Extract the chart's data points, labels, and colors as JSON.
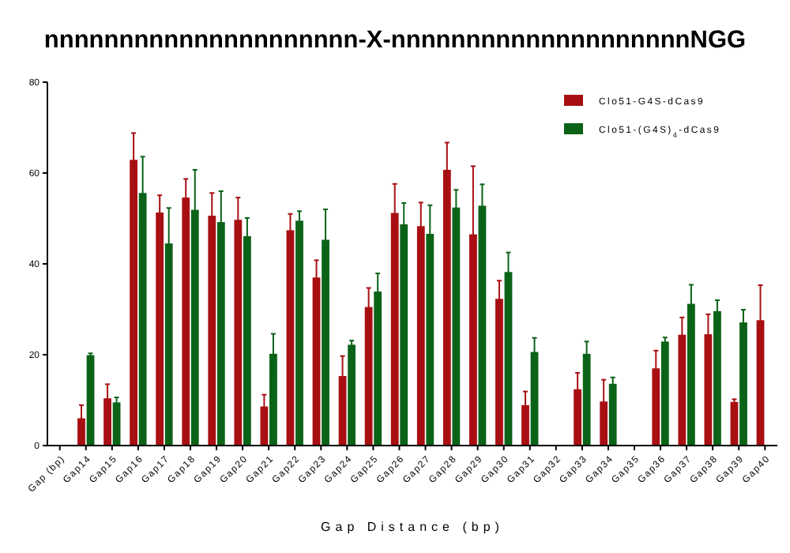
{
  "chart_data": {
    "type": "bar",
    "title": "nnnnnnnnnnnnnnnnnnnnn-X-nnnnnnnnnnnnnnnnnnnnNGG",
    "xlabel": "Gap Distance (bp)",
    "categories": [
      "Gap (bp)",
      "Gap14",
      "Gap15",
      "Gap16",
      "Gap17",
      "Gap18",
      "Gap19",
      "Gap20",
      "Gap21",
      "Gap22",
      "Gap23",
      "Gap24",
      "Gap25",
      "Gap26",
      "Gap27",
      "Gap28",
      "Gap29",
      "Gap30",
      "Gap31",
      "Gap32",
      "Gap33",
      "Gap34",
      "Gap35",
      "Gap36",
      "Gap37",
      "Gap38",
      "Gap39",
      "Gap40"
    ],
    "series": [
      {
        "name": "Clo51-G4S-dCas9",
        "color": "#a80f12",
        "values": [
          null,
          6.0,
          10.4,
          62.9,
          51.3,
          54.6,
          50.6,
          49.7,
          8.6,
          47.4,
          37.0,
          15.3,
          30.5,
          51.2,
          48.3,
          60.7,
          46.5,
          32.3,
          8.9,
          null,
          12.4,
          9.7,
          null,
          17.0,
          24.4,
          24.5,
          9.6,
          27.6
        ],
        "errors": [
          null,
          2.9,
          3.1,
          5.9,
          3.8,
          4.1,
          5.0,
          4.9,
          2.6,
          3.6,
          3.8,
          4.4,
          4.2,
          6.4,
          5.2,
          6.0,
          15.0,
          4.0,
          3.0,
          null,
          3.6,
          4.8,
          null,
          3.9,
          3.8,
          4.4,
          0.6,
          7.7
        ]
      },
      {
        "name": "Clo51-(G4S)$_{4}$-dCas9",
        "color": "#0b6318",
        "values": [
          null,
          19.9,
          9.5,
          55.6,
          44.5,
          51.9,
          49.2,
          46.1,
          20.2,
          49.5,
          45.3,
          22.2,
          33.9,
          48.7,
          46.6,
          52.4,
          52.8,
          38.2,
          20.6,
          null,
          20.2,
          13.6,
          null,
          22.9,
          31.2,
          29.6,
          27.1,
          null
        ],
        "errors": [
          null,
          0.4,
          1.1,
          8.0,
          7.8,
          8.8,
          6.8,
          4.0,
          4.4,
          2.1,
          6.7,
          0.9,
          4.0,
          4.7,
          6.3,
          3.9,
          4.7,
          4.3,
          3.1,
          null,
          2.7,
          1.4,
          null,
          0.9,
          4.2,
          2.4,
          2.8,
          null
        ]
      }
    ],
    "ylim": [
      0,
      80
    ],
    "yticks": [
      0,
      20,
      40,
      60,
      80
    ],
    "grid": false,
    "legend": "top right"
  }
}
